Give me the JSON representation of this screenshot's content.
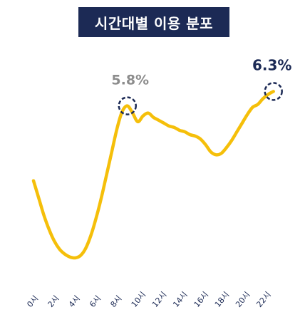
{
  "chart_data": {
    "type": "line",
    "title": "시간대별 이용 분포",
    "x_ticks": [
      "0시",
      "2시",
      "4시",
      "6시",
      "8시",
      "10시",
      "12시",
      "14시",
      "16시",
      "18시",
      "20시",
      "22시"
    ],
    "x": [
      0,
      0.5,
      1,
      1.5,
      2,
      2.5,
      3,
      3.5,
      4,
      4.5,
      5,
      5.5,
      6,
      6.5,
      7,
      7.5,
      8,
      8.5,
      9,
      9.5,
      10,
      10.5,
      11,
      11.5,
      12,
      12.5,
      13,
      13.5,
      14,
      14.5,
      15,
      15.5,
      16,
      16.5,
      17,
      17.5,
      18,
      18.5,
      19,
      19.5,
      20,
      20.5,
      21,
      21.5,
      22,
      22.5,
      23
    ],
    "values": [
      3.2,
      2.6,
      2.0,
      1.5,
      1.1,
      0.82,
      0.65,
      0.55,
      0.52,
      0.6,
      0.85,
      1.3,
      1.9,
      2.6,
      3.4,
      4.2,
      5.0,
      5.6,
      5.8,
      5.55,
      5.25,
      5.45,
      5.55,
      5.4,
      5.3,
      5.2,
      5.1,
      5.05,
      4.95,
      4.9,
      4.8,
      4.75,
      4.65,
      4.45,
      4.2,
      4.1,
      4.15,
      4.35,
      4.6,
      4.9,
      5.2,
      5.5,
      5.75,
      5.85,
      6.05,
      6.2,
      6.3
    ],
    "xlim": [
      0,
      23.5
    ],
    "ylim": [
      0,
      7.2
    ],
    "line_color": "#f5bf0a",
    "grid": false,
    "annotations": [
      {
        "label": "5.8%",
        "x": 9,
        "y": 5.8,
        "color": "#8c8c8c",
        "marker_color": "#1c2a55"
      },
      {
        "label": "6.3%",
        "x": 23,
        "y": 6.3,
        "color": "#1c2a55",
        "marker_color": "#1c2a55"
      }
    ]
  }
}
